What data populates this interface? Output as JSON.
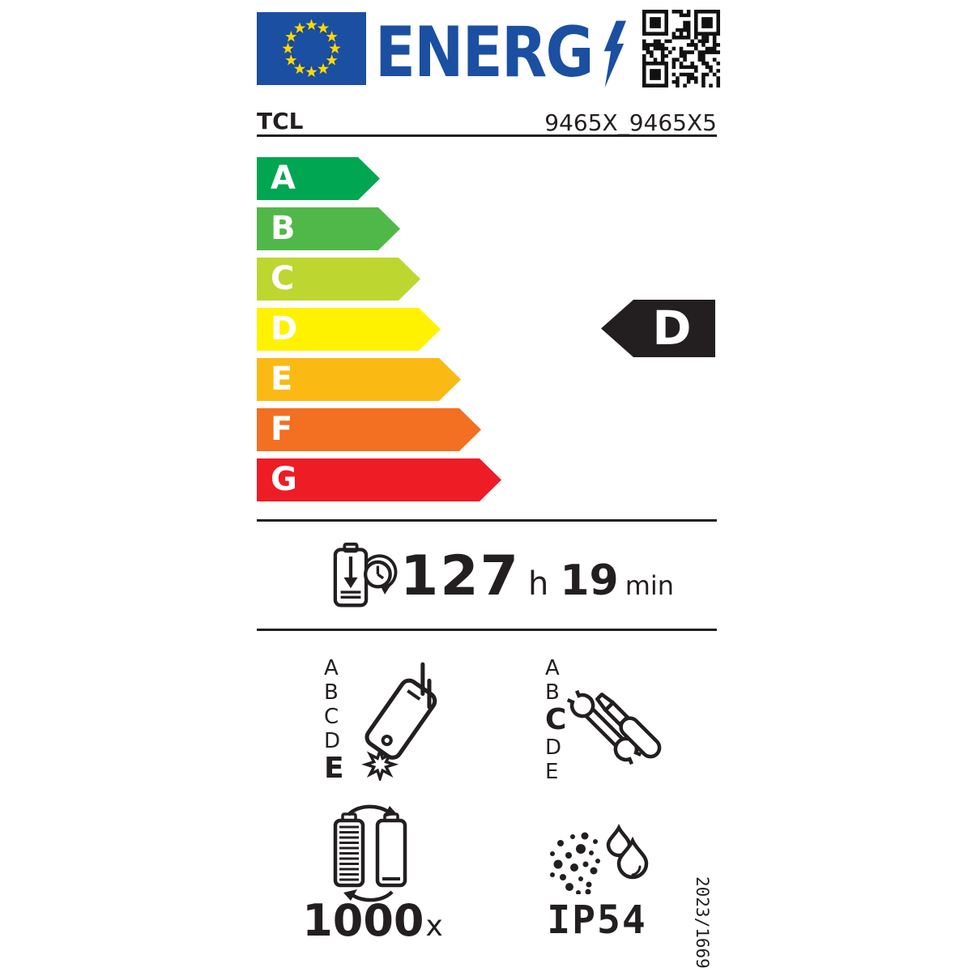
{
  "header": {
    "logo_text": "ENERG",
    "eu_flag_icon": "eu-flag",
    "lightning_icon": "lightning-bolt",
    "qr_icon": "qr-code",
    "colors": {
      "eu_blue": "#1b4fa2",
      "star_yellow": "#ffd900"
    }
  },
  "supplier": {
    "brand": "TCL",
    "model": "9465X_9465X5"
  },
  "energy_scale": {
    "tip_width": 27,
    "classes": [
      {
        "letter": "A",
        "color": "#00a651",
        "rect_width": 125
      },
      {
        "letter": "B",
        "color": "#50b848",
        "rect_width": 150
      },
      {
        "letter": "C",
        "color": "#bed630",
        "rect_width": 175
      },
      {
        "letter": "D",
        "color": "#fff200",
        "rect_width": 200
      },
      {
        "letter": "E",
        "color": "#fbb913",
        "rect_width": 225
      },
      {
        "letter": "F",
        "color": "#f36f21",
        "rect_width": 250
      },
      {
        "letter": "G",
        "color": "#ee1c25",
        "rect_width": 275
      }
    ],
    "rated_class": "D",
    "indicator_color": "#231f20"
  },
  "battery_life": {
    "icon": "battery-clock-icon",
    "hours": "127",
    "hours_unit": "h",
    "minutes": "19",
    "minutes_unit": "min"
  },
  "drop_resistance": {
    "icon": "phone-drop-icon",
    "scale": [
      "A",
      "B",
      "C",
      "D",
      "E"
    ],
    "rated": "E"
  },
  "repairability": {
    "icon": "tools-icon",
    "scale": [
      "A",
      "B",
      "C",
      "D",
      "E"
    ],
    "rated": "C"
  },
  "battery_endurance": {
    "icon": "battery-cycle-icon",
    "value": "1000",
    "unit": "x"
  },
  "ingress_protection": {
    "icon": "dust-water-icon",
    "rating": "IP54"
  },
  "regulation": "2023/1669"
}
